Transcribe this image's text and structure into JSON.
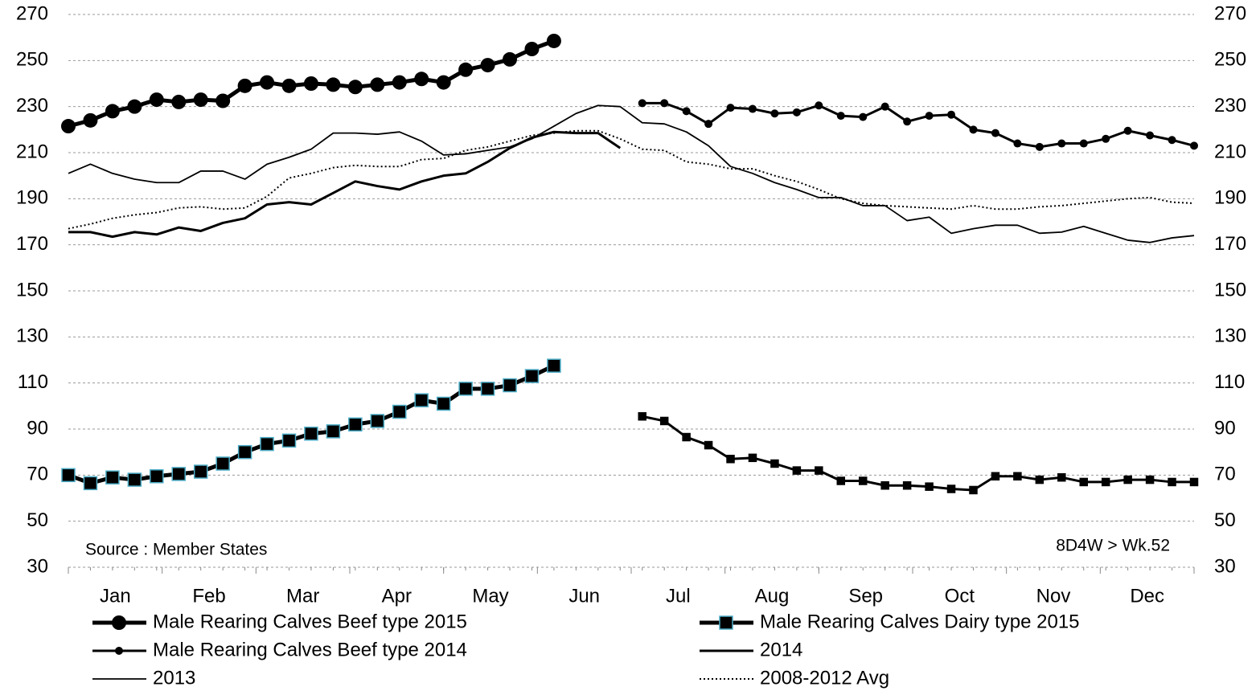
{
  "chart_data": {
    "type": "line",
    "categories": [
      null,
      null,
      null,
      null,
      null,
      null,
      null,
      null,
      null,
      null,
      null,
      null,
      null,
      null,
      null,
      null,
      null,
      null,
      null,
      null,
      null,
      null,
      null,
      null,
      null,
      null,
      null,
      null,
      null,
      null,
      null,
      null,
      null,
      null,
      null,
      null,
      null,
      null,
      null,
      null,
      null,
      null,
      null,
      null,
      null,
      null,
      null,
      null,
      null,
      null,
      null,
      null
    ],
    "x_labels": [
      "Jan",
      "Feb",
      "Mar",
      "Apr",
      "May",
      "Jun",
      "Jul",
      "Aug",
      "Sep",
      "Oct",
      "Nov",
      "Dec"
    ],
    "ylim": [
      30,
      270
    ],
    "yticks": [
      30,
      50,
      70,
      90,
      110,
      130,
      150,
      170,
      190,
      210,
      230,
      250,
      270
    ],
    "y2lim": [
      30,
      270
    ],
    "y2ticks": [
      30,
      50,
      70,
      90,
      110,
      130,
      150,
      170,
      190,
      210,
      230,
      250,
      270
    ],
    "grid": true,
    "annotations": [
      "Source : Member States",
      "8D4W > Wk.52"
    ],
    "series": [
      {
        "name": "Male Rearing Calves Beef type 2015",
        "color": "#000000",
        "line_width": 5,
        "marker": "circle",
        "marker_size": 9,
        "values": [
          221.5,
          224,
          228,
          230,
          233,
          232,
          233,
          232.5,
          239,
          240.5,
          239,
          240,
          239.5,
          238.5,
          239.5,
          240.5,
          242,
          240.5,
          246,
          248,
          250.5,
          255,
          258.5,
          null,
          null,
          null,
          null,
          null,
          null,
          null,
          null,
          null,
          null,
          null,
          null,
          null,
          null,
          null,
          null,
          null,
          null,
          null,
          null,
          null,
          null,
          null,
          null,
          null,
          null,
          null,
          null,
          null
        ]
      },
      {
        "name": "Male Rearing Calves Dairy type 2015",
        "color": "#000000",
        "marker_color": "#4bacc6",
        "line_width": 5,
        "marker": "square",
        "marker_size": 16,
        "values": [
          70,
          66.5,
          69,
          68,
          69.5,
          70.5,
          71.5,
          75,
          80,
          83.5,
          85,
          88,
          89,
          92,
          93.5,
          97.5,
          102.5,
          101,
          107.5,
          107.5,
          109,
          113,
          117.5,
          null,
          null,
          null,
          null,
          null,
          null,
          null,
          null,
          null,
          null,
          null,
          null,
          null,
          null,
          null,
          null,
          null,
          null,
          null,
          null,
          null,
          null,
          null,
          null,
          null,
          null,
          null,
          null,
          null
        ]
      },
      {
        "name": "Male Rearing Calves Beef type 2014",
        "color": "#000000",
        "line_width": 3,
        "marker": "circle",
        "marker_size": 5,
        "values": [
          null,
          null,
          null,
          null,
          null,
          null,
          null,
          null,
          null,
          null,
          null,
          null,
          null,
          null,
          null,
          null,
          null,
          null,
          null,
          null,
          null,
          null,
          null,
          null,
          null,
          null,
          231.5,
          231.5,
          228,
          222.5,
          229.5,
          229,
          227,
          227.5,
          230.5,
          226,
          225.5,
          230,
          223.5,
          226,
          226.5,
          220,
          218.5,
          214,
          212.5,
          214,
          214,
          216,
          219.5,
          217.5,
          215.5,
          213
        ]
      },
      {
        "name": "2014",
        "color": "#000000",
        "line_width": 3,
        "values": [
          175.5,
          175.5,
          173.5,
          175.5,
          174.5,
          177.5,
          176,
          179.5,
          181.5,
          187.5,
          188.5,
          187.5,
          192.5,
          197.5,
          195.5,
          194,
          197.5,
          200,
          201,
          206,
          212,
          216.5,
          219,
          218.5,
          218.5,
          212,
          null,
          null,
          null,
          null,
          null,
          null,
          null,
          null,
          null,
          null,
          null,
          null,
          null,
          null,
          null,
          null,
          null,
          null,
          null,
          null,
          null,
          null,
          null,
          null,
          null,
          null
        ]
      },
      {
        "name": "2013",
        "color": "#000000",
        "line_width": 1.8,
        "values": [
          201,
          205,
          201,
          198.5,
          197,
          197,
          202,
          202,
          198.5,
          205,
          208,
          211.5,
          218.5,
          218.5,
          218,
          219,
          215,
          209,
          209.5,
          211,
          212.5,
          216,
          221.5,
          227,
          230.5,
          230,
          223,
          222.5,
          219,
          213,
          204,
          201,
          197,
          194,
          190.5,
          190.5,
          187,
          187,
          180.5,
          182,
          175,
          177,
          178.5,
          178.5,
          175,
          175.5,
          178,
          175,
          172,
          171,
          173,
          174
        ]
      },
      {
        "name": "2008-2012 Avg",
        "color": "#000000",
        "line_width": 2,
        "dash": "2 3",
        "values": [
          177,
          179,
          181.5,
          183,
          184,
          186,
          186.5,
          185.5,
          186,
          191,
          199,
          201,
          203.5,
          204.5,
          204,
          204,
          207,
          207.5,
          211,
          212.5,
          215,
          217.5,
          218.5,
          219.5,
          219.5,
          216,
          211.5,
          211,
          206,
          205,
          203,
          203,
          200,
          197.5,
          194,
          190,
          188,
          187,
          186.5,
          186,
          185.5,
          187,
          185.5,
          185.5,
          186.5,
          187,
          188,
          189,
          190,
          190.5,
          188.5,
          188
        ]
      },
      {
        "color": "#000000",
        "line_width": 3,
        "marker": "square",
        "marker_size": 9,
        "values": [
          null,
          null,
          null,
          null,
          null,
          null,
          null,
          null,
          null,
          null,
          null,
          null,
          null,
          null,
          null,
          null,
          null,
          null,
          null,
          null,
          null,
          null,
          null,
          null,
          null,
          null,
          95.5,
          93.5,
          86.5,
          83,
          77,
          77.5,
          75,
          72,
          72,
          67.5,
          67.5,
          65.5,
          65.5,
          65,
          64,
          63.5,
          69.5,
          69.5,
          68,
          69,
          67,
          67,
          68,
          68,
          67,
          67
        ]
      }
    ]
  }
}
